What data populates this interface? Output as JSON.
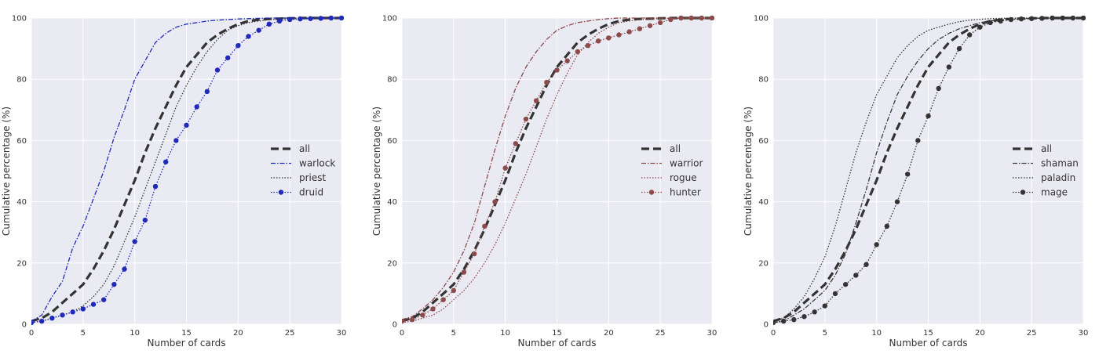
{
  "chart_data": [
    {
      "type": "line",
      "xlabel": "Number of cards",
      "ylabel": "Cumulative percentage (%)",
      "xlim": [
        0,
        30
      ],
      "ylim": [
        0,
        100
      ],
      "xticks": [
        "0",
        "5",
        "10",
        "15",
        "20",
        "25",
        "30"
      ],
      "yticks": [
        "0",
        "20",
        "40",
        "60",
        "80",
        "100"
      ],
      "grid": true,
      "legend_position": "center-right",
      "series": [
        {
          "name": "all",
          "color": "#333333",
          "dash": "dashed-thick",
          "marker": "none",
          "x": [
            0,
            1,
            2,
            3,
            4,
            5,
            6,
            7,
            8,
            9,
            10,
            11,
            12,
            13,
            14,
            15,
            16,
            17,
            18,
            19,
            20,
            21,
            22,
            23,
            24,
            25,
            26,
            27,
            28,
            29,
            30
          ],
          "y": [
            1,
            2,
            4,
            7,
            10,
            13,
            18,
            24,
            31,
            39,
            47,
            56,
            64,
            71,
            78,
            84,
            88,
            92,
            94.5,
            96.5,
            98,
            99,
            99.5,
            99.7,
            99.8,
            99.9,
            100,
            100,
            100,
            100,
            100
          ]
        },
        {
          "name": "warlock",
          "color": "#1f2ab8",
          "dash": "dashdot",
          "marker": "none",
          "x": [
            0,
            1,
            2,
            3,
            4,
            5,
            6,
            7,
            8,
            9,
            10,
            11,
            12,
            13,
            14,
            15,
            16,
            17,
            18,
            19,
            20,
            21,
            22,
            23,
            24,
            25,
            26,
            27,
            28,
            29,
            30
          ],
          "y": [
            1,
            3,
            9,
            14,
            25,
            32,
            41,
            50,
            61,
            70,
            80,
            86,
            92,
            95,
            97,
            98,
            98.5,
            99,
            99.3,
            99.5,
            99.7,
            99.8,
            99.9,
            100,
            100,
            100,
            100,
            100,
            100,
            100,
            100
          ]
        },
        {
          "name": "priest",
          "color": "#333333",
          "dash": "dotted",
          "marker": "none",
          "x": [
            0,
            1,
            2,
            3,
            4,
            5,
            6,
            7,
            8,
            9,
            10,
            11,
            12,
            13,
            14,
            15,
            16,
            17,
            18,
            19,
            20,
            21,
            22,
            23,
            24,
            25,
            26,
            27,
            28,
            29,
            30
          ],
          "y": [
            0.5,
            1,
            2,
            3,
            4,
            6,
            9,
            13,
            19,
            27,
            35,
            44,
            53,
            62,
            71,
            78,
            84,
            89,
            93,
            96,
            97.5,
            98.5,
            99,
            99.5,
            99.7,
            99.8,
            99.9,
            100,
            100,
            100,
            100
          ]
        },
        {
          "name": "druid",
          "color": "#1f2ab8",
          "dash": "dotted",
          "marker": "circle",
          "x": [
            0,
            1,
            2,
            3,
            4,
            5,
            6,
            7,
            8,
            9,
            10,
            11,
            12,
            13,
            14,
            15,
            16,
            17,
            18,
            19,
            20,
            21,
            22,
            23,
            24,
            25,
            26,
            27,
            28,
            29,
            30
          ],
          "y": [
            0.5,
            1,
            2,
            3,
            4,
            5,
            6.5,
            8,
            13,
            18,
            27,
            34,
            45,
            53,
            60,
            65,
            71,
            76,
            83,
            87,
            91,
            94,
            96,
            98,
            99,
            99.5,
            99.7,
            99.8,
            99.9,
            100,
            100
          ]
        }
      ]
    },
    {
      "type": "line",
      "xlabel": "Number of cards",
      "ylabel": "Cumulative percentage (%)",
      "xlim": [
        0,
        30
      ],
      "ylim": [
        0,
        100
      ],
      "xticks": [
        "0",
        "5",
        "10",
        "15",
        "20",
        "25",
        "30"
      ],
      "yticks": [
        "0",
        "20",
        "40",
        "60",
        "80",
        "100"
      ],
      "grid": true,
      "legend_position": "center-right",
      "series": [
        {
          "name": "all",
          "color": "#333333",
          "dash": "dashed-thick",
          "marker": "none",
          "x": [
            0,
            1,
            2,
            3,
            4,
            5,
            6,
            7,
            8,
            9,
            10,
            11,
            12,
            13,
            14,
            15,
            16,
            17,
            18,
            19,
            20,
            21,
            22,
            23,
            24,
            25,
            26,
            27,
            28,
            29,
            30
          ],
          "y": [
            1,
            2,
            4,
            7,
            10,
            13,
            18,
            24,
            31,
            39,
            47,
            56,
            64,
            71,
            78,
            84,
            88,
            92,
            94.5,
            96.5,
            98,
            99,
            99.5,
            99.7,
            99.8,
            99.9,
            100,
            100,
            100,
            100,
            100
          ]
        },
        {
          "name": "warrior",
          "color": "#8c4a4a",
          "dash": "dashdot",
          "marker": "none",
          "x": [
            0,
            1,
            2,
            3,
            4,
            5,
            6,
            7,
            8,
            9,
            10,
            11,
            12,
            13,
            14,
            15,
            16,
            17,
            18,
            19,
            20,
            21,
            22,
            23,
            24,
            25,
            26,
            27,
            28,
            29,
            30
          ],
          "y": [
            1.5,
            2.5,
            5,
            8,
            12,
            17,
            24,
            33,
            45,
            57,
            68,
            77,
            84,
            89,
            93,
            96,
            97.5,
            98.5,
            99,
            99.5,
            99.8,
            100,
            100,
            100,
            100,
            100,
            100,
            100,
            100,
            100,
            100
          ]
        },
        {
          "name": "rogue",
          "color": "#8c4a4a",
          "dash": "dotted",
          "marker": "none",
          "x": [
            0,
            1,
            2,
            3,
            4,
            5,
            6,
            7,
            8,
            9,
            10,
            11,
            12,
            13,
            14,
            15,
            16,
            17,
            18,
            19,
            20,
            21,
            22,
            23,
            24,
            25,
            26,
            27,
            28,
            29,
            30
          ],
          "y": [
            0.5,
            1,
            2,
            3,
            5,
            8,
            11,
            15,
            20,
            26,
            33,
            41,
            49,
            58,
            67,
            75,
            82,
            88,
            92,
            95,
            97,
            98.5,
            99,
            99.5,
            99.7,
            99.8,
            99.9,
            100,
            100,
            100,
            100
          ]
        },
        {
          "name": "hunter",
          "color": "#8c4a4a",
          "dash": "dotted",
          "marker": "circle",
          "x": [
            0,
            1,
            2,
            3,
            4,
            5,
            6,
            7,
            8,
            9,
            10,
            11,
            12,
            13,
            14,
            15,
            16,
            17,
            18,
            19,
            20,
            21,
            22,
            23,
            24,
            25,
            26,
            27,
            28,
            29,
            30
          ],
          "y": [
            1,
            1.5,
            3,
            5,
            8,
            11,
            17,
            23,
            32,
            40,
            51,
            59,
            67,
            73,
            79,
            83,
            86,
            89,
            91,
            92.5,
            93.5,
            94.5,
            95.5,
            96.5,
            97.5,
            98.5,
            99.5,
            100,
            100,
            100,
            100
          ]
        }
      ]
    },
    {
      "type": "line",
      "xlabel": "Number of cards",
      "ylabel": "Cumulative percentage (%)",
      "xlim": [
        0,
        30
      ],
      "ylim": [
        0,
        100
      ],
      "xticks": [
        "0",
        "5",
        "10",
        "15",
        "20",
        "25",
        "30"
      ],
      "yticks": [
        "0",
        "20",
        "40",
        "60",
        "80",
        "100"
      ],
      "grid": true,
      "legend_position": "center-right",
      "series": [
        {
          "name": "all",
          "color": "#333333",
          "dash": "dashed-thick",
          "marker": "none",
          "x": [
            0,
            1,
            2,
            3,
            4,
            5,
            6,
            7,
            8,
            9,
            10,
            11,
            12,
            13,
            14,
            15,
            16,
            17,
            18,
            19,
            20,
            21,
            22,
            23,
            24,
            25,
            26,
            27,
            28,
            29,
            30
          ],
          "y": [
            1,
            2,
            4,
            7,
            10,
            13,
            18,
            24,
            31,
            39,
            47,
            56,
            64,
            71,
            78,
            84,
            88,
            92,
            94.5,
            96.5,
            98,
            99,
            99.5,
            99.7,
            99.8,
            99.9,
            100,
            100,
            100,
            100,
            100
          ]
        },
        {
          "name": "shaman",
          "color": "#3a3a3a",
          "dash": "dashdot",
          "marker": "none",
          "x": [
            0,
            1,
            2,
            3,
            4,
            5,
            6,
            7,
            8,
            9,
            10,
            11,
            12,
            13,
            14,
            15,
            16,
            17,
            18,
            19,
            20,
            21,
            22,
            23,
            24,
            25,
            26,
            27,
            28,
            29,
            30
          ],
          "y": [
            0.5,
            1,
            3,
            5,
            8,
            11,
            16,
            23,
            33,
            44,
            56,
            66,
            75,
            81,
            86,
            90,
            93,
            95,
            96.5,
            97.5,
            98.5,
            99,
            99.5,
            99.7,
            99.8,
            99.9,
            100,
            100,
            100,
            100,
            100
          ]
        },
        {
          "name": "paladin",
          "color": "#333333",
          "dash": "dotted",
          "marker": "none",
          "x": [
            0,
            1,
            2,
            3,
            4,
            5,
            6,
            7,
            8,
            9,
            10,
            11,
            12,
            13,
            14,
            15,
            16,
            17,
            18,
            19,
            20,
            21,
            22,
            23,
            24,
            25,
            26,
            27,
            28,
            29,
            30
          ],
          "y": [
            1,
            2,
            5,
            9,
            15,
            22,
            32,
            44,
            56,
            66,
            75,
            81,
            87,
            91,
            94,
            96,
            97,
            98,
            98.8,
            99.3,
            99.6,
            99.8,
            99.9,
            100,
            100,
            100,
            100,
            100,
            100,
            100,
            100
          ]
        },
        {
          "name": "mage",
          "color": "#333333",
          "dash": "dotted",
          "marker": "circle",
          "x": [
            0,
            1,
            2,
            3,
            4,
            5,
            6,
            7,
            8,
            9,
            10,
            11,
            12,
            13,
            14,
            15,
            16,
            17,
            18,
            19,
            20,
            21,
            22,
            23,
            24,
            25,
            26,
            27,
            28,
            29,
            30
          ],
          "y": [
            0.5,
            1,
            1.5,
            2.5,
            4,
            6,
            10,
            13,
            16,
            19.5,
            26,
            32,
            40,
            49,
            60,
            68,
            77,
            84,
            90,
            94.5,
            97,
            98.5,
            99,
            99.5,
            99.7,
            99.8,
            99.9,
            100,
            100,
            100,
            100
          ]
        }
      ]
    }
  ]
}
